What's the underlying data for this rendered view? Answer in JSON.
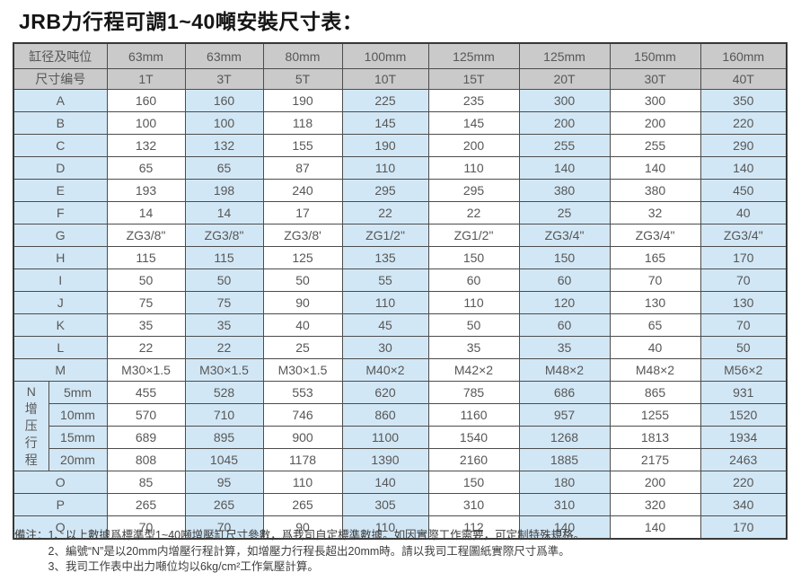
{
  "title": "JRB力行程可調1~40噸安裝尺寸表：",
  "table": {
    "corner_headers": [
      "缸径及吨位",
      "尺寸编号"
    ],
    "header_rows": [
      [
        "63mm",
        "63mm",
        "80mm",
        "100mm",
        "125mm",
        "125mm",
        "150mm",
        "160mm"
      ],
      [
        "1T",
        "3T",
        "5T",
        "10T",
        "15T",
        "20T",
        "30T",
        "40T"
      ]
    ],
    "dim_rows": [
      {
        "label": "A",
        "values": [
          "160",
          "160",
          "190",
          "225",
          "235",
          "300",
          "300",
          "350"
        ]
      },
      {
        "label": "B",
        "values": [
          "100",
          "100",
          "118",
          "145",
          "145",
          "200",
          "200",
          "220"
        ]
      },
      {
        "label": "C",
        "values": [
          "132",
          "132",
          "155",
          "190",
          "200",
          "255",
          "255",
          "290"
        ]
      },
      {
        "label": "D",
        "values": [
          "65",
          "65",
          "87",
          "110",
          "110",
          "140",
          "140",
          "140"
        ]
      },
      {
        "label": "E",
        "values": [
          "193",
          "198",
          "240",
          "295",
          "295",
          "380",
          "380",
          "450"
        ]
      },
      {
        "label": "F",
        "values": [
          "14",
          "14",
          "17",
          "22",
          "22",
          "25",
          "32",
          "40"
        ]
      },
      {
        "label": "G",
        "values": [
          "ZG3/8\"",
          "ZG3/8\"",
          "ZG3/8'",
          "ZG1/2\"",
          "ZG1/2\"",
          "ZG3/4\"",
          "ZG3/4\"",
          "ZG3/4\""
        ]
      },
      {
        "label": "H",
        "values": [
          "115",
          "115",
          "125",
          "135",
          "150",
          "150",
          "165",
          "170"
        ]
      },
      {
        "label": "I",
        "values": [
          "50",
          "50",
          "50",
          "55",
          "60",
          "60",
          "70",
          "70"
        ]
      },
      {
        "label": "J",
        "values": [
          "75",
          "75",
          "90",
          "110",
          "110",
          "120",
          "130",
          "130"
        ]
      },
      {
        "label": "K",
        "values": [
          "35",
          "35",
          "40",
          "45",
          "50",
          "60",
          "65",
          "70"
        ]
      },
      {
        "label": "L",
        "values": [
          "22",
          "22",
          "25",
          "30",
          "35",
          "35",
          "40",
          "50"
        ]
      },
      {
        "label": "M",
        "values": [
          "M30×1.5",
          "M30×1.5",
          "M30×1.5",
          "M40×2",
          "M42×2",
          "M48×2",
          "M48×2",
          "M56×2"
        ]
      }
    ],
    "n_section": {
      "vertical_label": "N增压行程",
      "rows": [
        {
          "label": "5mm",
          "values": [
            "455",
            "528",
            "553",
            "620",
            "785",
            "686",
            "865",
            "931"
          ]
        },
        {
          "label": "10mm",
          "values": [
            "570",
            "710",
            "746",
            "860",
            "1160",
            "957",
            "1255",
            "1520"
          ]
        },
        {
          "label": "15mm",
          "values": [
            "689",
            "895",
            "900",
            "1100",
            "1540",
            "1268",
            "1813",
            "1934"
          ]
        },
        {
          "label": "20mm",
          "values": [
            "808",
            "1045",
            "1178",
            "1390",
            "2160",
            "1885",
            "2175",
            "2463"
          ]
        }
      ]
    },
    "tail_rows": [
      {
        "label": "O",
        "values": [
          "85",
          "95",
          "110",
          "140",
          "150",
          "180",
          "200",
          "220"
        ]
      },
      {
        "label": "P",
        "values": [
          "265",
          "265",
          "265",
          "305",
          "310",
          "310",
          "320",
          "340"
        ]
      },
      {
        "label": "Q",
        "values": [
          "70",
          "70",
          "90",
          "110",
          "112",
          "140",
          "140",
          "170"
        ]
      }
    ]
  },
  "notes": {
    "prefix": "備注：",
    "items": [
      "1、以上數據爲標準型1~40噸增壓缸尺寸參數，爲我司自定標準數據。如因實際工作需要，可定制特殊規格。",
      "2、編號“N”是以20mm内增壓行程計算，如增壓力行程長超出20mm時。請以我司工程圖紙實際尺寸爲準。",
      "3、我司工作表中出力噸位均以6kg/cm²工作氣壓計算。"
    ]
  },
  "colors": {
    "header_bg": "#cacaca",
    "band_blue": "#d2e7f5",
    "band_white": "#ffffff",
    "border": "#4c4c4c",
    "title_text": "#151515"
  }
}
